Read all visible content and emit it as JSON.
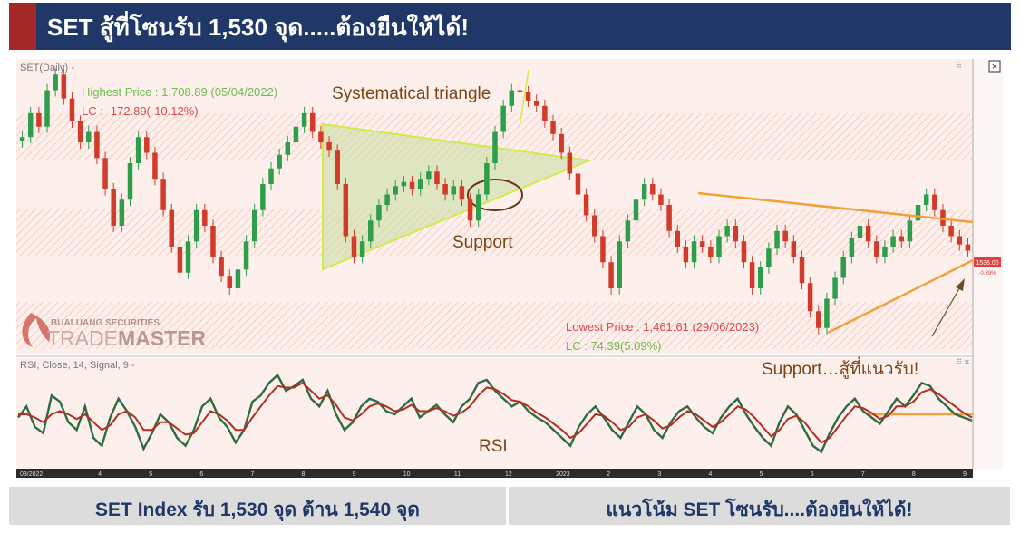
{
  "header": {
    "title": "SET สู้ที่โซนรับ 1,530 จุด.....ต้องยืนให้ได้!"
  },
  "footer": {
    "left": "SET Index รับ 1,530 จุด ต้าน 1,540 จุด",
    "right": "แนวโน้ม SET โซนรับ....ต้องยืนให้ได้!"
  },
  "chart_data": {
    "type": "candlestick",
    "price_panel_label": "SET(Daily) -",
    "rsi_panel_label": "RSI, Close, 14, Signal, 9 -",
    "annotations": {
      "highest": "Highest Price : 1,708.89 (05/04/2022)",
      "highest_lc": "LC : -172.89(-10.12%)",
      "lowest": "Lowest Price : 1,461.61 (29/06/2023)",
      "lowest_lc": "LC : 74.39(5.09%)",
      "triangle": "Systematical triangle",
      "support": "Support",
      "support2": "Support…สู้ที่แนวรับ!",
      "rsi": "RSI"
    },
    "logo": {
      "line1": "BUALUANG SECURITIES",
      "line2a": "TRADE",
      "line2b": "MASTER"
    },
    "last_price_label": "1536.00",
    "last_change_label": "-0.39%",
    "ylim": [
      1440,
      1720
    ],
    "x_ticks": [
      "03/2022",
      "4",
      "5",
      "6",
      "7",
      "8",
      "9",
      "10",
      "11",
      "12",
      "2023",
      "2",
      "3",
      "4",
      "5",
      "6",
      "7",
      "8",
      "9"
    ],
    "price_path": [
      1645,
      1668,
      1655,
      1690,
      1705,
      1682,
      1660,
      1640,
      1650,
      1625,
      1595,
      1560,
      1585,
      1620,
      1645,
      1630,
      1605,
      1575,
      1540,
      1515,
      1545,
      1575,
      1560,
      1530,
      1512,
      1500,
      1518,
      1545,
      1575,
      1600,
      1615,
      1628,
      1640,
      1655,
      1668,
      1650,
      1640,
      1632,
      1600,
      1550,
      1530,
      1545,
      1565,
      1580,
      1590,
      1598,
      1602,
      1595,
      1605,
      1612,
      1600,
      1590,
      1598,
      1585,
      1565,
      1590,
      1620,
      1650,
      1675,
      1690,
      1688,
      1680,
      1675,
      1660,
      1648,
      1630,
      1610,
      1590,
      1570,
      1550,
      1525,
      1500,
      1545,
      1565,
      1585,
      1600,
      1590,
      1580,
      1555,
      1540,
      1525,
      1545,
      1540,
      1530,
      1550,
      1560,
      1545,
      1525,
      1500,
      1520,
      1538,
      1555,
      1545,
      1530,
      1505,
      1478,
      1462,
      1490,
      1510,
      1530,
      1548,
      1560,
      1545,
      1530,
      1540,
      1550,
      1545,
      1565,
      1580,
      1590,
      1575,
      1560,
      1550,
      1542,
      1536
    ],
    "rsi_path": [
      48,
      55,
      42,
      38,
      62,
      58,
      45,
      40,
      55,
      35,
      30,
      48,
      60,
      52,
      42,
      28,
      38,
      50,
      45,
      35,
      30,
      40,
      55,
      60,
      48,
      42,
      32,
      40,
      58,
      62,
      70,
      75,
      65,
      68,
      72,
      60,
      55,
      65,
      50,
      40,
      45,
      55,
      60,
      58,
      52,
      50,
      55,
      60,
      48,
      52,
      56,
      50,
      45,
      55,
      60,
      70,
      72,
      65,
      60,
      55,
      58,
      52,
      48,
      45,
      40,
      35,
      30,
      42,
      50,
      55,
      48,
      40,
      35,
      45,
      55,
      50,
      40,
      35,
      45,
      52,
      55,
      48,
      42,
      38,
      48,
      55,
      60,
      50,
      42,
      35,
      30,
      45,
      55,
      50,
      40,
      30,
      26,
      38,
      48,
      55,
      60,
      52,
      48,
      44,
      52,
      60,
      55,
      62,
      70,
      68,
      60,
      55,
      50,
      48,
      46
    ],
    "signal_path": [
      50,
      50,
      48,
      45,
      50,
      52,
      50,
      47,
      50,
      45,
      40,
      43,
      50,
      52,
      48,
      40,
      40,
      45,
      45,
      41,
      37,
      38,
      45,
      52,
      50,
      46,
      40,
      40,
      48,
      55,
      62,
      68,
      67,
      67,
      70,
      65,
      60,
      62,
      56,
      48,
      46,
      50,
      55,
      57,
      55,
      52,
      53,
      56,
      52,
      52,
      54,
      52,
      49,
      51,
      55,
      62,
      67,
      66,
      63,
      59,
      58,
      55,
      51,
      48,
      44,
      40,
      35,
      38,
      44,
      50,
      49,
      45,
      40,
      42,
      48,
      50,
      46,
      41,
      43,
      48,
      52,
      50,
      46,
      42,
      45,
      50,
      55,
      53,
      48,
      42,
      36,
      40,
      47,
      49,
      45,
      38,
      32,
      35,
      42,
      49,
      55,
      54,
      51,
      47,
      49,
      55,
      55,
      58,
      64,
      66,
      63,
      59,
      55,
      51,
      48
    ]
  }
}
